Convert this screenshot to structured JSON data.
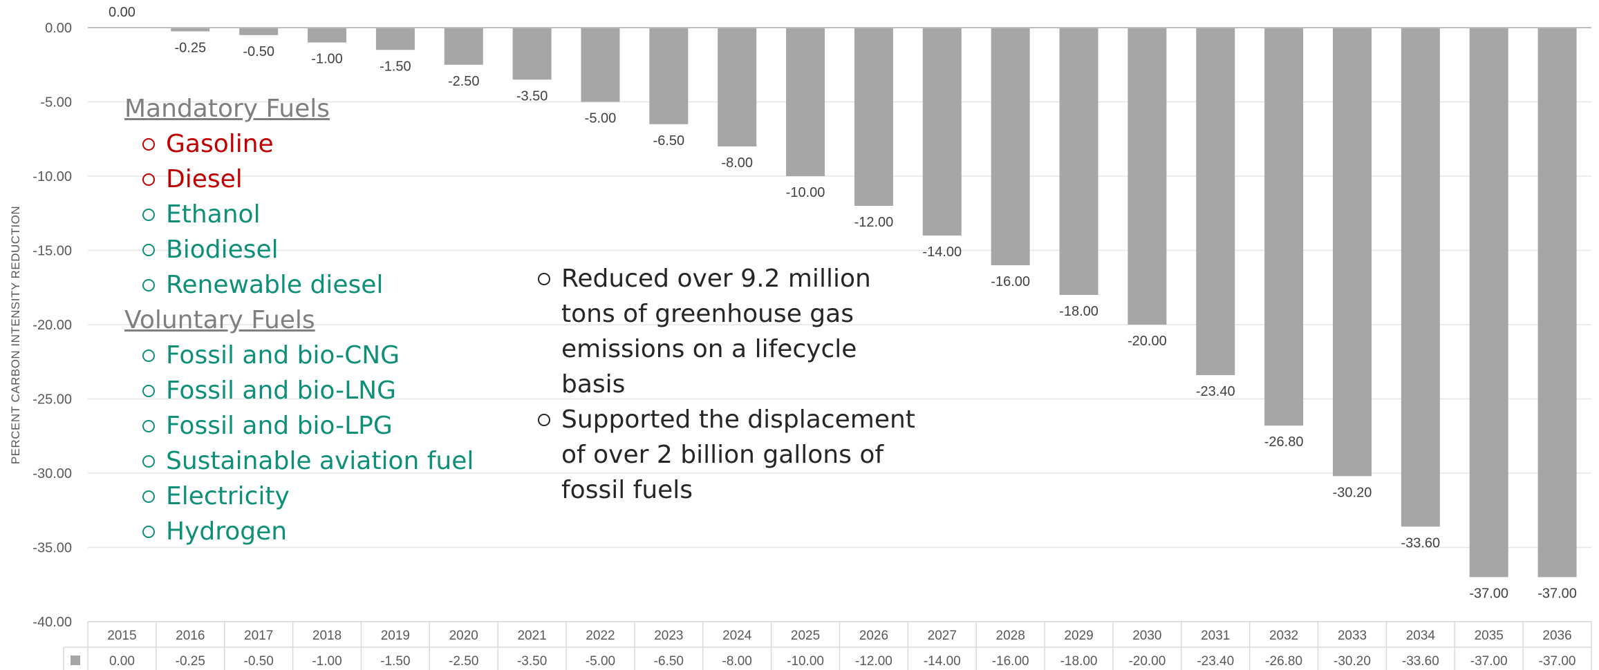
{
  "colors": {
    "bar": "#a6a6a6",
    "mandatory": "#c00000",
    "voluntary": "#0e8f78",
    "axis": "#595959"
  },
  "chart_data": {
    "type": "bar",
    "ylabel": "PERCENT CARBON INTENSITY REDUCTION",
    "xlabel": "",
    "title": "",
    "ylim": [
      -40,
      0
    ],
    "yticks": [
      "0.00",
      "-5.00",
      "-10.00",
      "-15.00",
      "-20.00",
      "-25.00",
      "-30.00",
      "-35.00",
      "-40.00"
    ],
    "categories": [
      "2015",
      "2016",
      "2017",
      "2018",
      "2019",
      "2020",
      "2021",
      "2022",
      "2023",
      "2024",
      "2025",
      "2026",
      "2027",
      "2028",
      "2029",
      "2030",
      "2031",
      "2032",
      "2033",
      "2034",
      "2035",
      "2036"
    ],
    "values": [
      0.0,
      -0.25,
      -0.5,
      -1.0,
      -1.5,
      -2.5,
      -3.5,
      -5.0,
      -6.5,
      -8.0,
      -10.0,
      -12.0,
      -14.0,
      -16.0,
      -18.0,
      -20.0,
      -23.4,
      -26.8,
      -30.2,
      -33.6,
      -37.0,
      -37.0
    ],
    "labels": [
      "0.00",
      "-0.25",
      "-0.50",
      "-1.00",
      "-1.50",
      "-2.50",
      "-3.50",
      "-5.00",
      "-6.50",
      "-8.00",
      "-10.00",
      "-12.00",
      "-14.00",
      "-16.00",
      "-18.00",
      "-20.00",
      "-23.40",
      "-26.80",
      "-30.20",
      "-33.60",
      "-37.00",
      "-37.00"
    ],
    "data_table": true,
    "grid": true
  },
  "overlay": {
    "mandatory_title": "Mandatory Fuels",
    "mandatory_items": [
      "Gasoline",
      "Diesel",
      "Ethanol",
      "Biodiesel",
      "Renewable diesel"
    ],
    "voluntary_title": "Voluntary Fuels",
    "voluntary_items": [
      "Fossil and bio-CNG",
      "Fossil and bio-LNG",
      "Fossil and bio-LPG",
      "Sustainable aviation fuel",
      "Electricity",
      "Hydrogen"
    ],
    "stats": [
      "Reduced over 9.2 million tons of greenhouse gas emissions on a lifecycle basis",
      "Supported the displacement of over 2 billion gallons of fossil fuels"
    ]
  }
}
